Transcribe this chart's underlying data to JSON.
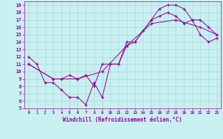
{
  "xlabel": "Windchill (Refroidissement éolien,°C)",
  "ylabel": "",
  "bg_color": "#c8f0f0",
  "grid_color": "#a8d8d8",
  "line_color": "#990099",
  "xlim": [
    -0.5,
    23.5
  ],
  "ylim": [
    5,
    19.5
  ],
  "xticks": [
    0,
    1,
    2,
    3,
    4,
    5,
    6,
    7,
    8,
    9,
    10,
    11,
    12,
    13,
    14,
    15,
    16,
    17,
    18,
    19,
    20,
    21,
    22,
    23
  ],
  "yticks": [
    5,
    6,
    7,
    8,
    9,
    10,
    11,
    12,
    13,
    14,
    15,
    16,
    17,
    18,
    19
  ],
  "line1_x": [
    0,
    1,
    2,
    3,
    4,
    5,
    6,
    7,
    8,
    9,
    10,
    11,
    12,
    13,
    14,
    15,
    16,
    17,
    18,
    19,
    20,
    21,
    22,
    23
  ],
  "line1_y": [
    12,
    11,
    8.5,
    8.5,
    7.5,
    6.5,
    6.5,
    5.5,
    8.5,
    6.5,
    11,
    11,
    13.5,
    14,
    15.5,
    17,
    18.5,
    19,
    19,
    18.5,
    17,
    17,
    16,
    15
  ],
  "line2_x": [
    0,
    3,
    4,
    5,
    6,
    7,
    8,
    9,
    10,
    11,
    12,
    13,
    14,
    15,
    16,
    17,
    18,
    19,
    20,
    21,
    22,
    23
  ],
  "line2_y": [
    11,
    9,
    9,
    9.5,
    9,
    9.5,
    8,
    11,
    11,
    11,
    14,
    14,
    15.5,
    17,
    17.5,
    18,
    17.5,
    16.5,
    17,
    15,
    14,
    14.5
  ],
  "line3_x": [
    0,
    3,
    6,
    9,
    12,
    15,
    18,
    21,
    23
  ],
  "line3_y": [
    11,
    9,
    9,
    10,
    13.5,
    16.5,
    17,
    16,
    15
  ]
}
